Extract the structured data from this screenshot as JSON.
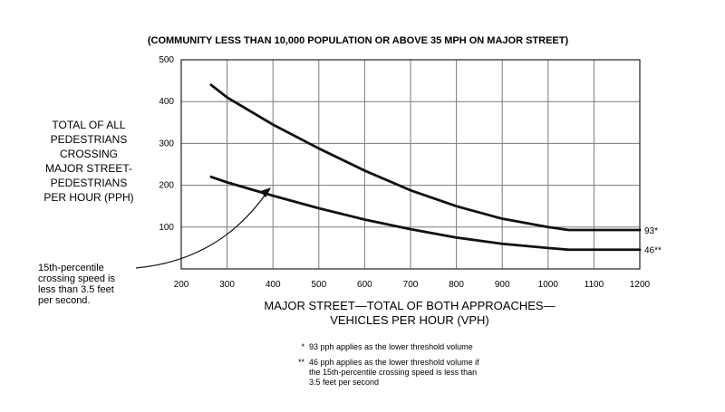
{
  "chart_data": {
    "type": "line",
    "title": "(COMMUNITY LESS THAN 10,000 POPULATION OR ABOVE 35 MPH ON MAJOR STREET)",
    "ylabel_lines": [
      "TOTAL OF ALL",
      "PEDESTRIANS",
      "CROSSING",
      "MAJOR STREET-",
      "PEDESTRIANS",
      "PER HOUR (PPH)"
    ],
    "xlabel_lines": [
      "MAJOR STREET—TOTAL OF BOTH APPROACHES—",
      "VEHICLES PER HOUR (VPH)"
    ],
    "xlim": [
      200,
      1200
    ],
    "ylim": [
      0,
      500
    ],
    "x_ticks": [
      200,
      300,
      400,
      500,
      600,
      700,
      800,
      900,
      1000,
      1100,
      1200
    ],
    "y_ticks": [
      100,
      200,
      300,
      400,
      500
    ],
    "grid": true,
    "series": [
      {
        "end_label": "93*",
        "x": [
          265,
          300,
          400,
          500,
          600,
          700,
          800,
          900,
          1000,
          1045,
          1200
        ],
        "y": [
          440,
          410,
          345,
          288,
          235,
          188,
          150,
          120,
          100,
          93,
          93
        ]
      },
      {
        "end_label": "46**",
        "x": [
          265,
          300,
          400,
          500,
          600,
          700,
          800,
          900,
          1000,
          1045,
          1200
        ],
        "y": [
          220,
          207,
          175,
          145,
          118,
          95,
          75,
          60,
          50,
          46,
          46
        ]
      }
    ],
    "annotation": {
      "lines": [
        "15th-percentile",
        "crossing speed is",
        "less than 3.5 feet",
        "per second."
      ],
      "points_to": {
        "x": 390,
        "y": 188
      }
    },
    "footnotes": [
      {
        "marker": "*",
        "lines": [
          "93 pph applies as the lower threshold volume"
        ]
      },
      {
        "marker": "**",
        "lines": [
          "46 pph applies as the lower threshold volume if",
          "the 15th-percentile crossing speed is less than",
          "3.5 feet per second"
        ]
      }
    ]
  }
}
